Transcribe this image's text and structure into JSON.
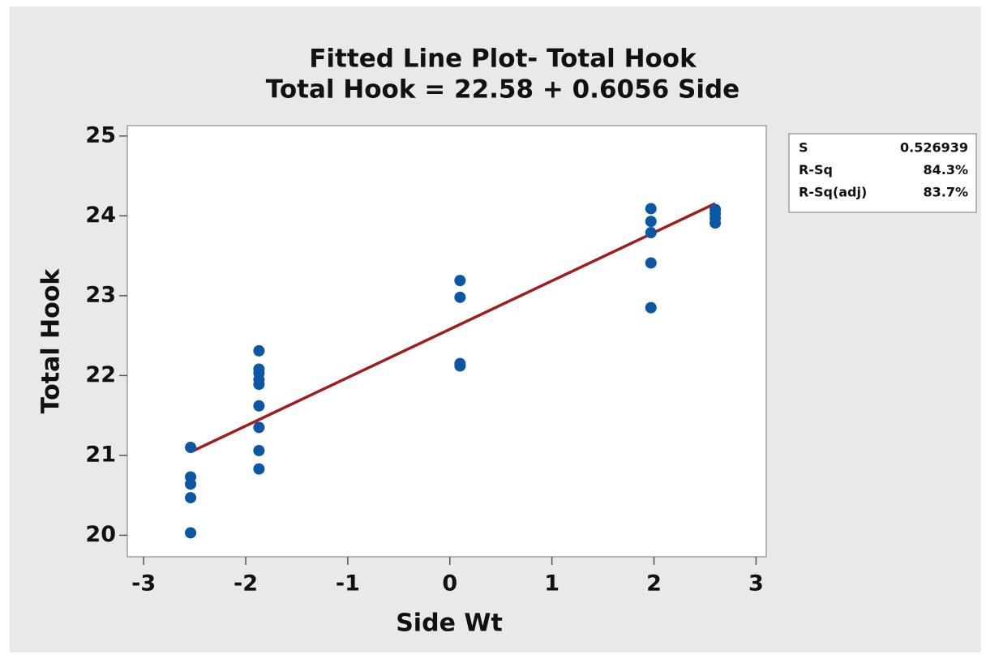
{
  "chart_data": {
    "type": "scatter",
    "title": "Fitted Line Plot- Total Hook",
    "subtitle": "Total Hook = 22.58 + 0.6056 Side",
    "x_label": "Side Wt",
    "y_label": "Total Hook",
    "x": [
      -2.54,
      -2.54,
      -2.54,
      -2.54,
      -2.54,
      -1.87,
      -1.87,
      -1.87,
      -1.87,
      -1.87,
      -1.87,
      -1.87,
      -1.87,
      -1.87,
      0.1,
      0.1,
      0.1,
      0.1,
      1.97,
      1.97,
      1.97,
      1.97,
      1.97,
      2.6,
      2.6,
      2.6,
      2.6
    ],
    "values": [
      21.1,
      20.73,
      20.64,
      20.47,
      20.03,
      22.31,
      22.08,
      22.03,
      21.95,
      21.89,
      21.62,
      21.35,
      21.06,
      20.83,
      23.19,
      22.98,
      22.15,
      22.12,
      24.09,
      23.93,
      23.79,
      23.41,
      22.85,
      24.08,
      24.03,
      23.97,
      23.91
    ],
    "color": "#0b57a4",
    "fit": {
      "intercept": 22.58,
      "slope": 0.6056,
      "color": "#a11d1d"
    },
    "xlim": [
      -3.16,
      3.1
    ],
    "xticks": [
      -3,
      -2,
      -1,
      0,
      1,
      2,
      3
    ],
    "ylim": [
      19.73,
      25.13
    ],
    "yticks": [
      20,
      21,
      22,
      23,
      24,
      25
    ],
    "grid": false,
    "stats": [
      {
        "label": "S",
        "value": "0.526939"
      },
      {
        "label": "R-Sq",
        "value": "84.3%"
      },
      {
        "label": "R-Sq(adj)",
        "value": "83.7%"
      }
    ]
  }
}
